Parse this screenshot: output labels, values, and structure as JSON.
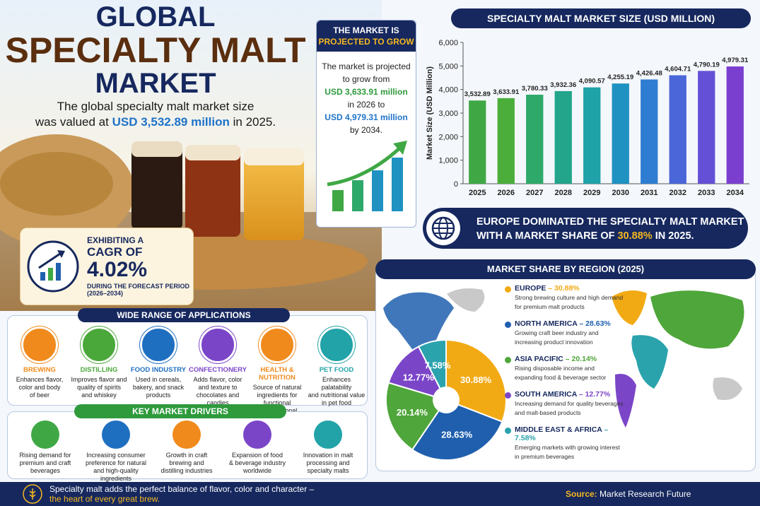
{
  "header": {
    "title_lines": [
      "GLOBAL",
      "SPECIALTY MALT",
      "MARKET"
    ],
    "intro": [
      "The global specialty malt market size",
      "was valued at",
      "USD 3,532.89 million",
      "in 2025."
    ]
  },
  "projection": {
    "title": [
      "THE MARKET IS",
      "PROJECTED TO GROW"
    ],
    "text": [
      "The market is projected",
      "to grow from",
      "USD 3,633.91 million",
      "in 2026 to",
      "USD 4,979.31 million",
      "by 2034."
    ]
  },
  "cagr": {
    "lead": "EXHIBITING A",
    "label": "CAGR OF",
    "value": "4.02%",
    "period": "DURING THE FORECAST PERIOD",
    "years": "(2026–2034)"
  },
  "europe": {
    "line1": "EUROPE DOMINATED THE SPECIALTY MALT MARKET",
    "line2": "WITH A MARKET SHARE OF",
    "share": "30.88%",
    "end": "IN 2025."
  },
  "chart_data": [
    {
      "type": "bar",
      "title": "SPECIALTY MALT MARKET SIZE (USD MILLION)",
      "y_label": "Market Size (USD Million)",
      "categories": [
        "2025",
        "2026",
        "2027",
        "2028",
        "2029",
        "2030",
        "2031",
        "2032",
        "2033",
        "2034"
      ],
      "values": [
        3532.89,
        3633.91,
        3780.33,
        3932.36,
        4090.57,
        4255.19,
        4426.48,
        4604.71,
        4790.19,
        4979.31
      ],
      "value_labels": [
        "3,532.89",
        "3,633.91",
        "3,780.33",
        "3,932.36",
        "4,090.57",
        "4,255.19",
        "4,426.48",
        "4,604.71",
        "4,790.19",
        "4,979.31"
      ],
      "colors": [
        "#3fa845",
        "#4bae3b",
        "#2ea96a",
        "#22a58a",
        "#1fa2a8",
        "#1f92c2",
        "#2e7dd2",
        "#4a66d8",
        "#6450d6",
        "#7b3fd0"
      ],
      "ylim": [
        0,
        6000
      ],
      "yticks": [
        0,
        {
          "value": 1000,
          "label": "1,000"
        },
        {
          "value": 2000,
          "label": "2,000"
        },
        {
          "value": 3000,
          "label": "3,000"
        },
        {
          "value": 4000,
          "label": "4,000"
        },
        {
          "value": 5000,
          "label": "5,000"
        },
        {
          "value": 6000,
          "label": "6,000"
        }
      ]
    },
    {
      "type": "pie",
      "title": "MARKET SHARE BY REGION (2025)",
      "categories": [
        "EUROPE",
        "NORTH AMERICA",
        "ASIA PACIFIC",
        "SOUTH AMERICA",
        "MIDDLE EAST & AFRICA"
      ],
      "values": [
        30.88,
        28.63,
        20.14,
        12.77,
        7.58
      ],
      "value_labels": [
        "30.88%",
        "28.63%",
        "20.14%",
        "12.77%",
        "7.58%"
      ],
      "colors": [
        "#f2aa14",
        "#1f5fae",
        "#4fa63a",
        "#7b45c8",
        "#2aa3ad"
      ],
      "separator": "–",
      "descriptions": [
        [
          "Strong brewing culture and high demand",
          "for premium malt products"
        ],
        [
          "Growing craft beer industry and",
          "increasing product innovation"
        ],
        [
          "Rising disposable income and",
          "expanding food & beverage sector"
        ],
        [
          "Increasing demand for quality beverages",
          "and malt-based products"
        ],
        [
          "Emerging markets with growing interest",
          "in premium beverages"
        ]
      ]
    }
  ],
  "applications": {
    "title": "WIDE RANGE OF APPLICATIONS",
    "items": [
      {
        "name": "BREWING",
        "text": [
          "Enhances flavor,",
          "color and body",
          "of beer"
        ]
      },
      {
        "name": "DISTILLING",
        "text": [
          "Improves flavor and",
          "quality of spirits",
          "and whiskey"
        ]
      },
      {
        "name": "FOOD INDUSTRY",
        "text": [
          "Used in cereals,",
          "bakery, and snack",
          "products"
        ]
      },
      {
        "name": "CONFECTIONERY",
        "text": [
          "Adds flavor, color",
          "and texture to",
          "chocolates and candies"
        ]
      },
      {
        "name": "HEALTH & NUTRITION",
        "text": [
          "Source of natural",
          "ingredients for functional",
          "and nutritional products"
        ]
      },
      {
        "name": "PET FOOD",
        "text": [
          "Enhances palatability",
          "and nutritional value",
          "in pet food"
        ]
      }
    ]
  },
  "drivers": {
    "title": "KEY MARKET DRIVERS",
    "items": [
      [
        "Rising demand for",
        "premium and craft",
        "beverages"
      ],
      [
        "Increasing consumer",
        "preference for natural",
        "and high-quality ingredients"
      ],
      [
        "Growth in craft",
        "brewing and",
        "distilling industries"
      ],
      [
        "Expansion of food",
        "& beverage industry",
        "worldwide"
      ],
      [
        "Innovation in malt",
        "processing and",
        "specialty malts"
      ]
    ]
  },
  "footer": {
    "text": [
      "Specialty malt adds the perfect balance of flavor, color and character –",
      "the heart of every great brew."
    ],
    "source_label": "Source:",
    "source": "Market Research Future"
  }
}
